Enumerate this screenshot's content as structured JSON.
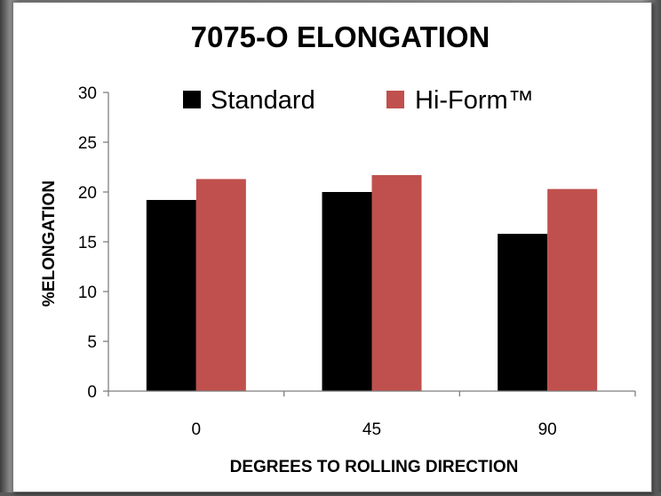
{
  "colors": {
    "standard": "#000000",
    "hiform": "#C0504D",
    "axis": "#7f7f7f",
    "text": "#000000"
  },
  "chart_data": {
    "type": "bar",
    "title": "7075-O ELONGATION",
    "xlabel": "DEGREES TO ROLLING DIRECTION",
    "ylabel": "%ELONGATION",
    "categories": [
      "0",
      "45",
      "90"
    ],
    "series": [
      {
        "name": "Standard",
        "values": [
          19.2,
          20.0,
          15.8
        ]
      },
      {
        "name": "Hi-Form™",
        "values": [
          21.3,
          21.7,
          20.3
        ]
      }
    ],
    "ylim": [
      0,
      30
    ],
    "yticks": [
      "0",
      "5",
      "10",
      "15",
      "20",
      "25",
      "30"
    ],
    "grid": false,
    "legend_position": "top"
  }
}
